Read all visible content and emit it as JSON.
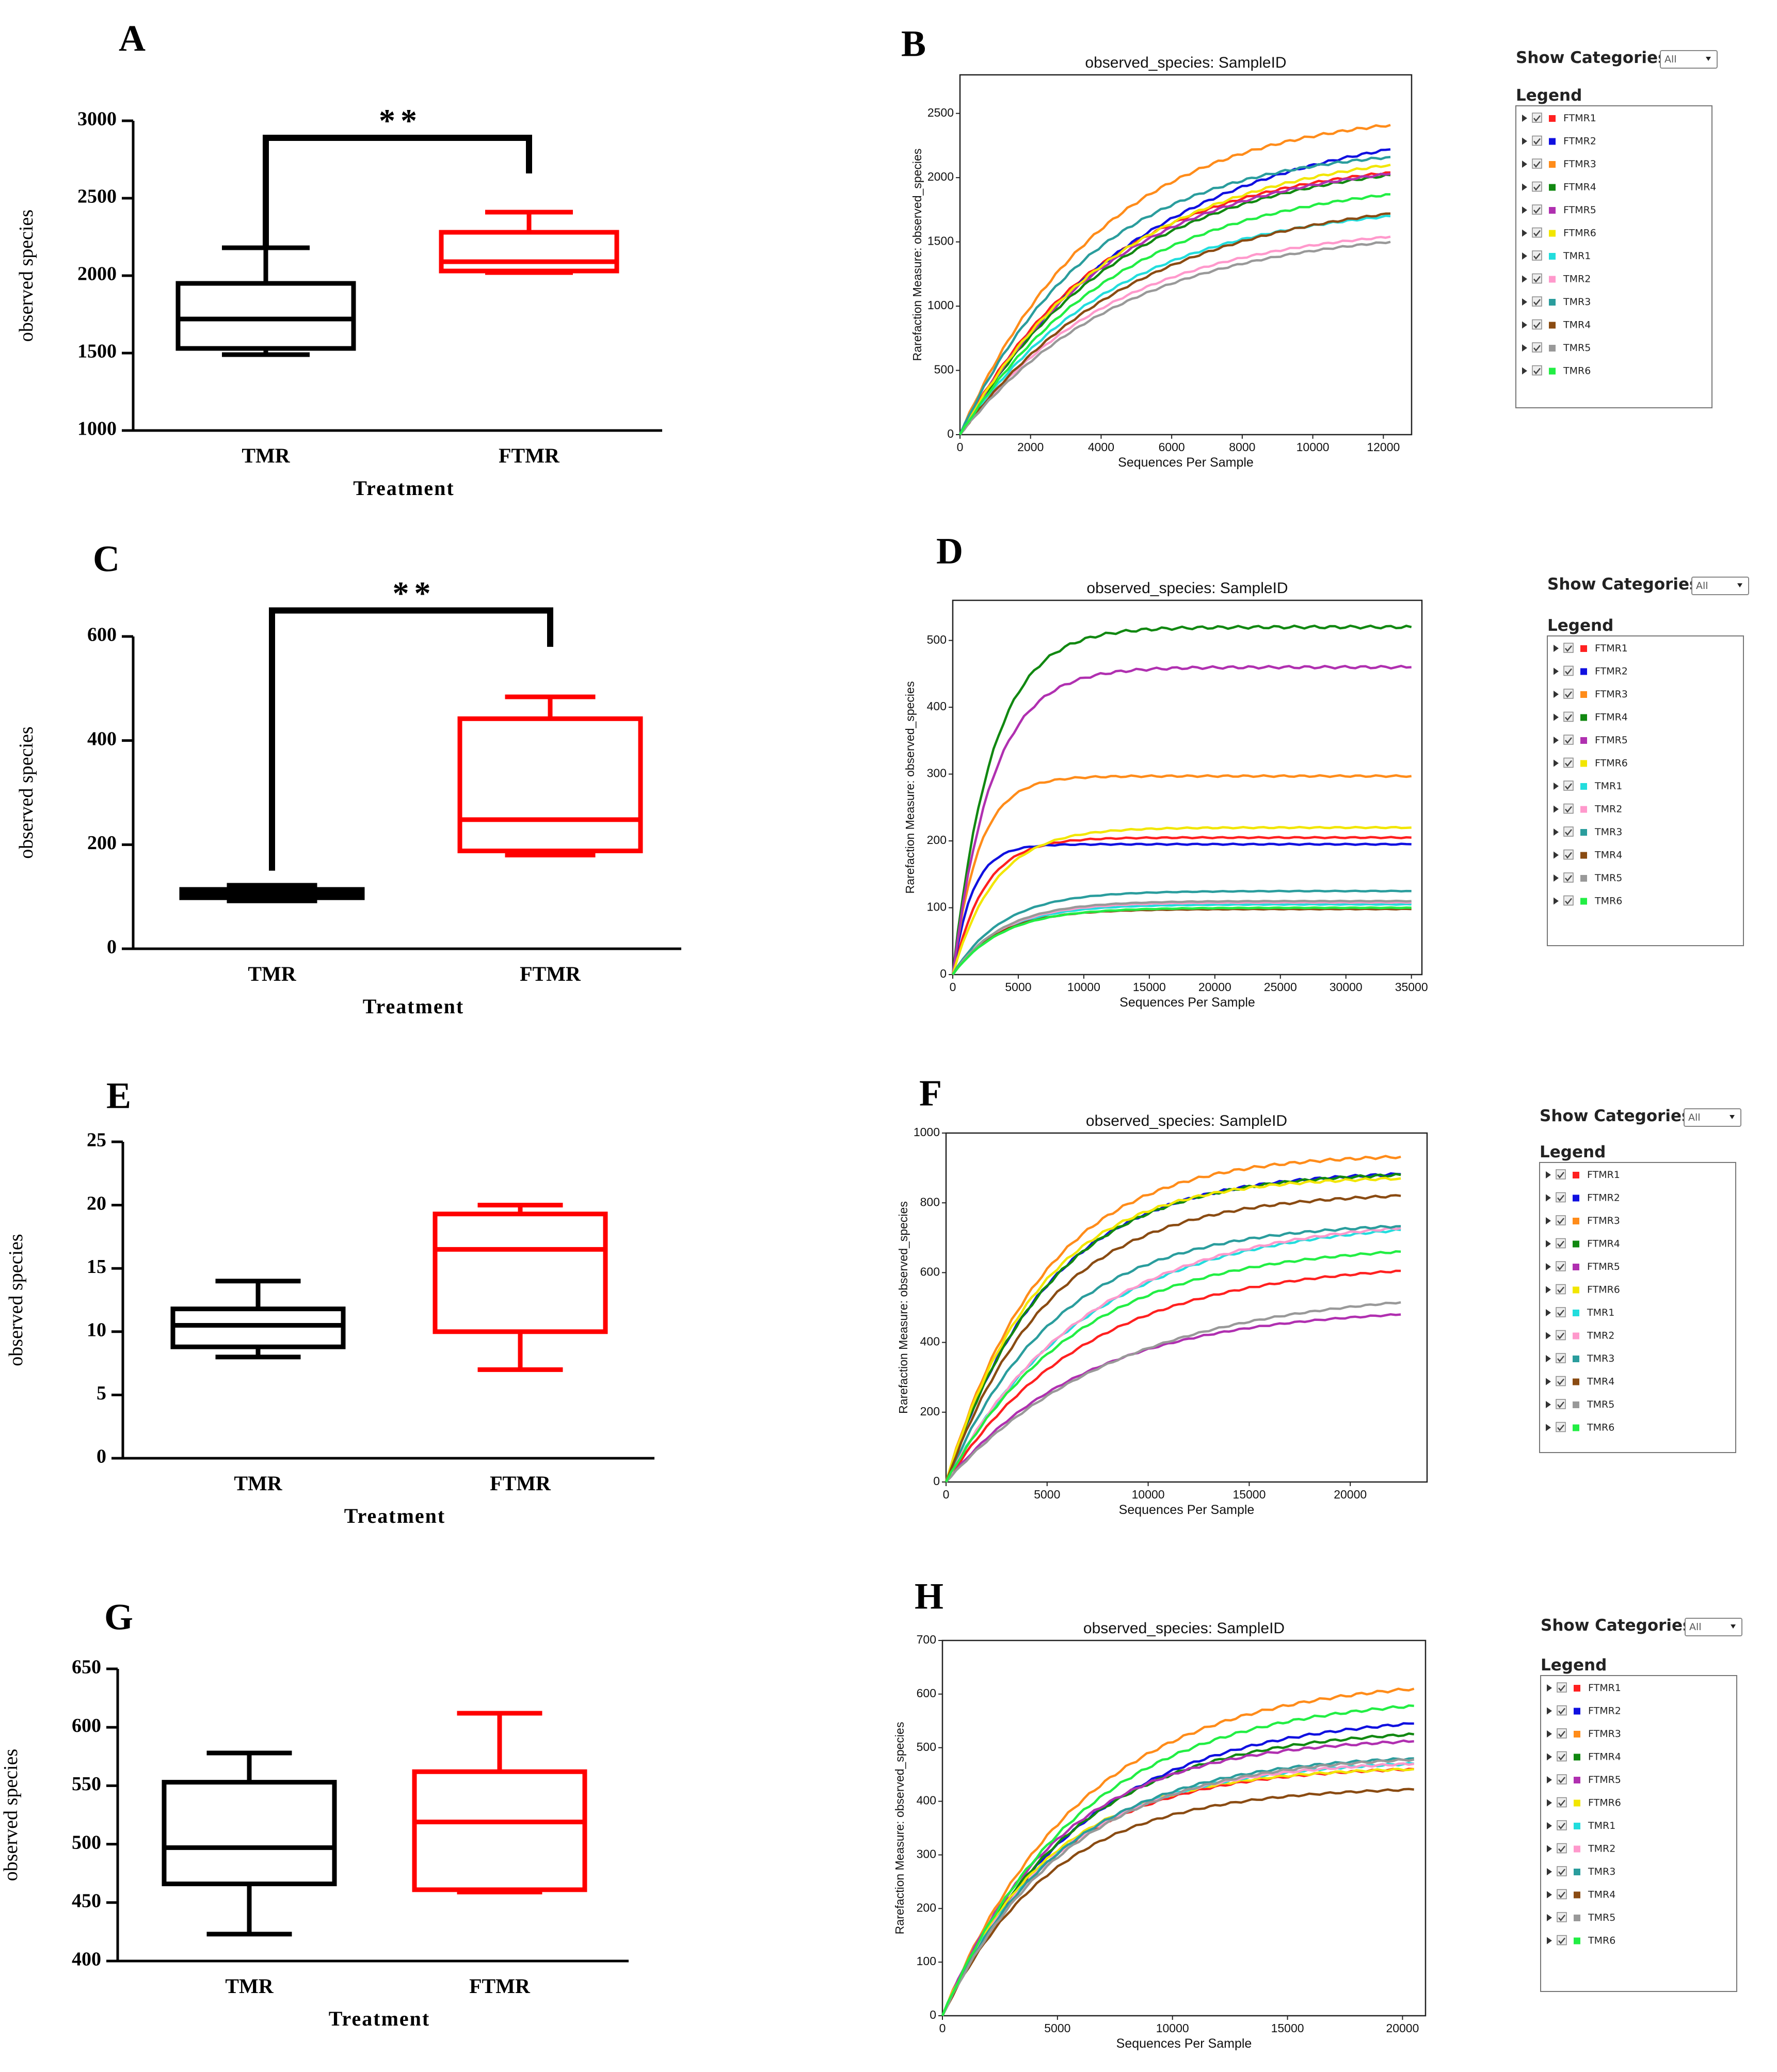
{
  "ui": {
    "show_categories_label": "Show Categories:",
    "show_categories_value": "All",
    "legend_title": "Legend"
  },
  "chart_data": [
    {
      "panel": "A",
      "type": "box",
      "title": "",
      "xlabel": "Treatment",
      "ylabel": "observed species",
      "ylim": [
        1000,
        3000
      ],
      "yticks": [
        1000,
        1500,
        2000,
        2500,
        3000
      ],
      "categories": [
        "TMR",
        "FTMR"
      ],
      "boxes": [
        {
          "name": "TMR",
          "color": "#000000",
          "min": 1490,
          "q1": 1530,
          "median": 1720,
          "q3": 1950,
          "max": 2180
        },
        {
          "name": "FTMR",
          "color": "#ff0000",
          "min": 2020,
          "q1": 2030,
          "median": 2090,
          "q3": 2280,
          "max": 2410
        }
      ],
      "significance": {
        "text": "**",
        "left_y": 2180,
        "right_y": 2660,
        "top_y": 2890
      }
    },
    {
      "panel": "B",
      "type": "line",
      "title": "observed_species: SampleID",
      "xlabel": "Sequences Per Sample",
      "ylabel": "Rarefaction Measure: observed_species",
      "xlim": [
        0,
        12800
      ],
      "ylim": [
        0,
        2800
      ],
      "xticks": [
        0,
        2000,
        4000,
        6000,
        8000,
        10000,
        12000
      ],
      "yticks": [
        0,
        500,
        1000,
        1500,
        2000,
        2500
      ],
      "x_max": 12200,
      "series": [
        {
          "name": "FTMR1",
          "color": "#ff2020",
          "final": 2040,
          "k": 4200
        },
        {
          "name": "FTMR2",
          "color": "#1010e0",
          "final": 2220,
          "k": 5200
        },
        {
          "name": "FTMR3",
          "color": "#ff8c1a",
          "final": 2410,
          "k": 4000
        },
        {
          "name": "FTMR4",
          "color": "#118811",
          "final": 2020,
          "k": 4600
        },
        {
          "name": "FTMR5",
          "color": "#b030b0",
          "final": 2030,
          "k": 4400
        },
        {
          "name": "FTMR6",
          "color": "#f2e600",
          "final": 2100,
          "k": 4600
        },
        {
          "name": "TMR1",
          "color": "#22dddd",
          "final": 1700,
          "k": 4400
        },
        {
          "name": "TMR2",
          "color": "#ff99cc",
          "final": 1540,
          "k": 4400
        },
        {
          "name": "TMR3",
          "color": "#2a9d9d",
          "final": 2160,
          "k": 3800
        },
        {
          "name": "TMR4",
          "color": "#8a4b12",
          "final": 1720,
          "k": 5000
        },
        {
          "name": "TMR5",
          "color": "#999999",
          "final": 1500,
          "k": 4600
        },
        {
          "name": "TMR6",
          "color": "#22ee44",
          "final": 1870,
          "k": 4600
        }
      ]
    },
    {
      "panel": "C",
      "type": "box",
      "title": "",
      "xlabel": "Treatment",
      "ylabel": "observed species",
      "ylim": [
        0,
        600
      ],
      "yticks": [
        0,
        200,
        400,
        600
      ],
      "categories": [
        "TMR",
        "FTMR"
      ],
      "boxes": [
        {
          "name": "TMR",
          "color": "#000000",
          "min": 92,
          "q1": 98,
          "median": 106,
          "q3": 114,
          "max": 122
        },
        {
          "name": "FTMR",
          "color": "#ff0000",
          "min": 180,
          "q1": 188,
          "median": 248,
          "q3": 442,
          "max": 484
        }
      ],
      "significance": {
        "text": "**",
        "left_y": 150,
        "right_y": 580,
        "top_y": 650
      }
    },
    {
      "panel": "D",
      "type": "line",
      "title": "observed_species: SampleID",
      "xlabel": "Sequences Per Sample",
      "ylabel": "Rarefaction Measure: observed_species",
      "xlim": [
        0,
        35800
      ],
      "ylim": [
        0,
        560
      ],
      "xticks": [
        0,
        5000,
        10000,
        15000,
        20000,
        25000,
        30000,
        35000
      ],
      "yticks": [
        0,
        100,
        200,
        300,
        400,
        500
      ],
      "x_max": 35000,
      "series": [
        {
          "name": "FTMR1",
          "color": "#ff2020",
          "final": 205,
          "k": 2400
        },
        {
          "name": "FTMR2",
          "color": "#1010e0",
          "final": 195,
          "k": 1500
        },
        {
          "name": "FTMR3",
          "color": "#ff8c1a",
          "final": 297,
          "k": 2000
        },
        {
          "name": "FTMR4",
          "color": "#118811",
          "final": 520,
          "k": 3000
        },
        {
          "name": "FTMR5",
          "color": "#b030b0",
          "final": 460,
          "k": 3000
        },
        {
          "name": "FTMR6",
          "color": "#f2e600",
          "final": 220,
          "k": 3200
        },
        {
          "name": "TMR1",
          "color": "#22dddd",
          "final": 105,
          "k": 3800
        },
        {
          "name": "TMR2",
          "color": "#ff99cc",
          "final": 108,
          "k": 3800
        },
        {
          "name": "TMR3",
          "color": "#2a9d9d",
          "final": 125,
          "k": 3800
        },
        {
          "name": "TMR4",
          "color": "#8a4b12",
          "final": 98,
          "k": 3500
        },
        {
          "name": "TMR5",
          "color": "#999999",
          "final": 110,
          "k": 3800
        },
        {
          "name": "TMR6",
          "color": "#22ee44",
          "final": 100,
          "k": 3800
        }
      ]
    },
    {
      "panel": "E",
      "type": "box",
      "title": "",
      "xlabel": "Treatment",
      "ylabel": "observed species",
      "ylim": [
        0,
        25
      ],
      "yticks": [
        0,
        5,
        10,
        15,
        20,
        25
      ],
      "categories": [
        "TMR",
        "FTMR"
      ],
      "boxes": [
        {
          "name": "TMR",
          "color": "#000000",
          "min": 8,
          "q1": 8.8,
          "median": 10.5,
          "q3": 11.8,
          "max": 14
        },
        {
          "name": "FTMR",
          "color": "#ff0000",
          "min": 7,
          "q1": 10,
          "median": 16.5,
          "q3": 19.3,
          "max": 20
        }
      ]
    },
    {
      "panel": "F",
      "type": "line",
      "title": "observed_species: SampleID",
      "xlabel": "Sequences Per Sample",
      "ylabel": "Rarefaction Measure: observed_species",
      "xlim": [
        0,
        23800
      ],
      "ylim": [
        0,
        1000
      ],
      "xticks": [
        0,
        5000,
        10000,
        15000,
        20000
      ],
      "yticks": [
        0,
        200,
        400,
        600,
        800,
        1000
      ],
      "x_max": 22500,
      "series": [
        {
          "name": "FTMR1",
          "color": "#ff2020",
          "final": 605,
          "k": 7000
        },
        {
          "name": "FTMR2",
          "color": "#1010e0",
          "final": 882,
          "k": 5000
        },
        {
          "name": "FTMR3",
          "color": "#ff8c1a",
          "final": 932,
          "k": 4800
        },
        {
          "name": "FTMR4",
          "color": "#118811",
          "final": 880,
          "k": 5000
        },
        {
          "name": "FTMR5",
          "color": "#b030b0",
          "final": 480,
          "k": 7000
        },
        {
          "name": "FTMR6",
          "color": "#f2e600",
          "final": 870,
          "k": 4600
        },
        {
          "name": "TMR1",
          "color": "#22dddd",
          "final": 722,
          "k": 7000
        },
        {
          "name": "TMR2",
          "color": "#ff99cc",
          "final": 728,
          "k": 7000
        },
        {
          "name": "TMR3",
          "color": "#2a9d9d",
          "final": 733,
          "k": 5500
        },
        {
          "name": "TMR4",
          "color": "#8a4b12",
          "final": 820,
          "k": 5200
        },
        {
          "name": "TMR5",
          "color": "#999999",
          "final": 515,
          "k": 8500
        },
        {
          "name": "TMR6",
          "color": "#22ee44",
          "final": 660,
          "k": 6500
        }
      ]
    },
    {
      "panel": "G",
      "type": "box",
      "title": "",
      "xlabel": "Treatment",
      "ylabel": "observed species",
      "ylim": [
        400,
        650
      ],
      "yticks": [
        400,
        450,
        500,
        550,
        600,
        650
      ],
      "categories": [
        "TMR",
        "FTMR"
      ],
      "boxes": [
        {
          "name": "TMR",
          "color": "#000000",
          "min": 423,
          "q1": 466,
          "median": 497,
          "q3": 553,
          "max": 578
        },
        {
          "name": "FTMR",
          "color": "#ff0000",
          "min": 459,
          "q1": 461,
          "median": 519,
          "q3": 562,
          "max": 612
        }
      ]
    },
    {
      "panel": "H",
      "type": "line",
      "title": "observed_species: SampleID",
      "xlabel": "Sequences Per Sample",
      "ylabel": "Rarefaction Measure: observed_species",
      "xlim": [
        0,
        21000
      ],
      "ylim": [
        0,
        700
      ],
      "xticks": [
        0,
        5000,
        10000,
        15000,
        20000
      ],
      "yticks": [
        0,
        100,
        200,
        300,
        400,
        500,
        600,
        700
      ],
      "x_max": 20500,
      "series": [
        {
          "name": "FTMR1",
          "color": "#ff2020",
          "final": 460,
          "k": 4800
        },
        {
          "name": "FTMR2",
          "color": "#1010e0",
          "final": 545,
          "k": 6000
        },
        {
          "name": "FTMR3",
          "color": "#ff8c1a",
          "final": 610,
          "k": 6000
        },
        {
          "name": "FTMR4",
          "color": "#118811",
          "final": 525,
          "k": 5500
        },
        {
          "name": "FTMR5",
          "color": "#b030b0",
          "final": 512,
          "k": 5000
        },
        {
          "name": "FTMR6",
          "color": "#f2e600",
          "final": 460,
          "k": 4600
        },
        {
          "name": "TMR1",
          "color": "#22dddd",
          "final": 470,
          "k": 5000
        },
        {
          "name": "TMR2",
          "color": "#ff99cc",
          "final": 470,
          "k": 5000
        },
        {
          "name": "TMR3",
          "color": "#2a9d9d",
          "final": 480,
          "k": 5200
        },
        {
          "name": "TMR4",
          "color": "#8a4b12",
          "final": 422,
          "k": 4800
        },
        {
          "name": "TMR5",
          "color": "#999999",
          "final": 478,
          "k": 5400
        },
        {
          "name": "TMR6",
          "color": "#22ee44",
          "final": 578,
          "k": 6000
        }
      ]
    }
  ]
}
